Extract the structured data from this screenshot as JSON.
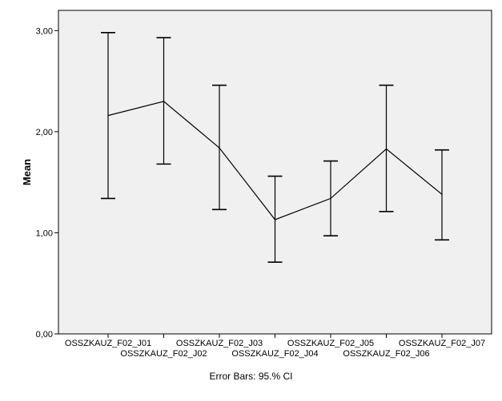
{
  "chart_data": {
    "type": "line",
    "title": "",
    "xlabel": "",
    "ylabel": "Mean",
    "ylim": [
      0,
      3.2
    ],
    "yticks": [
      0,
      1,
      2,
      3
    ],
    "ytick_labels": [
      "0,00",
      "1,00",
      "2,00",
      "3,00"
    ],
    "grid": false,
    "categories": [
      "OSSZKAUZ_F02_J01",
      "OSSZKAUZ_F02_J02",
      "OSSZKAUZ_F02_J03",
      "OSSZKAUZ_F02_J04",
      "OSSZKAUZ_F02_J05",
      "OSSZKAUZ_F02_J06",
      "OSSZKAUZ_F02_J07"
    ],
    "series": [
      {
        "values": [
          2.16,
          2.3,
          1.84,
          1.13,
          1.34,
          1.83,
          1.38
        ],
        "ci_lower": [
          1.34,
          1.68,
          1.23,
          0.71,
          0.97,
          1.21,
          0.93
        ],
        "ci_upper": [
          2.98,
          2.93,
          2.46,
          1.56,
          1.71,
          2.46,
          1.82
        ]
      }
    ],
    "footnote": "Error Bars: 95.% CI",
    "colors": {
      "plot_background": "#f0f0f0",
      "line": "#000000",
      "page_background": "#ffffff"
    }
  }
}
